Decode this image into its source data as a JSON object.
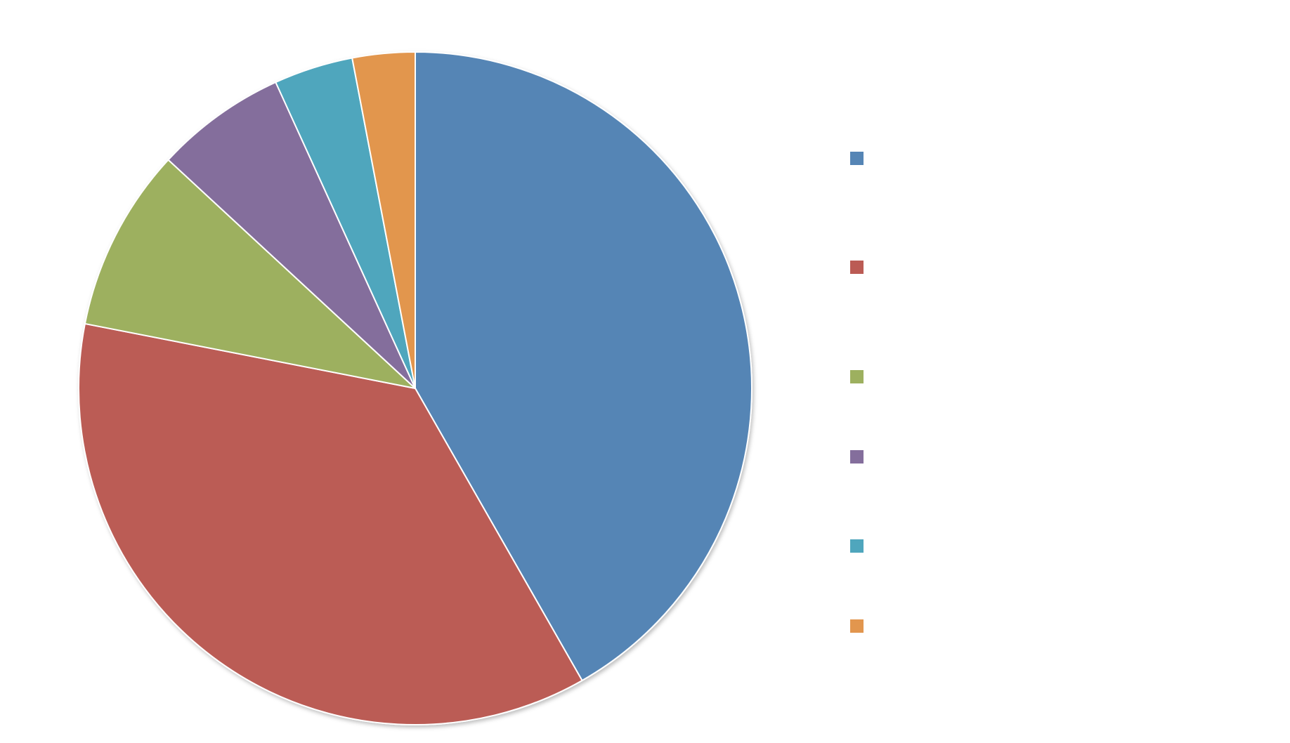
{
  "chart_data": {
    "type": "pie",
    "categories": [
      null,
      null,
      null,
      null,
      null,
      null
    ],
    "values": [
      41.7,
      36.3,
      8.8,
      6.3,
      3.8,
      3.0
    ],
    "colors": [
      "#5585b5",
      "#bb5b54",
      "#9db05f",
      "#846e9c",
      "#4fa6bd",
      "#e2964e"
    ],
    "legend": "right"
  }
}
